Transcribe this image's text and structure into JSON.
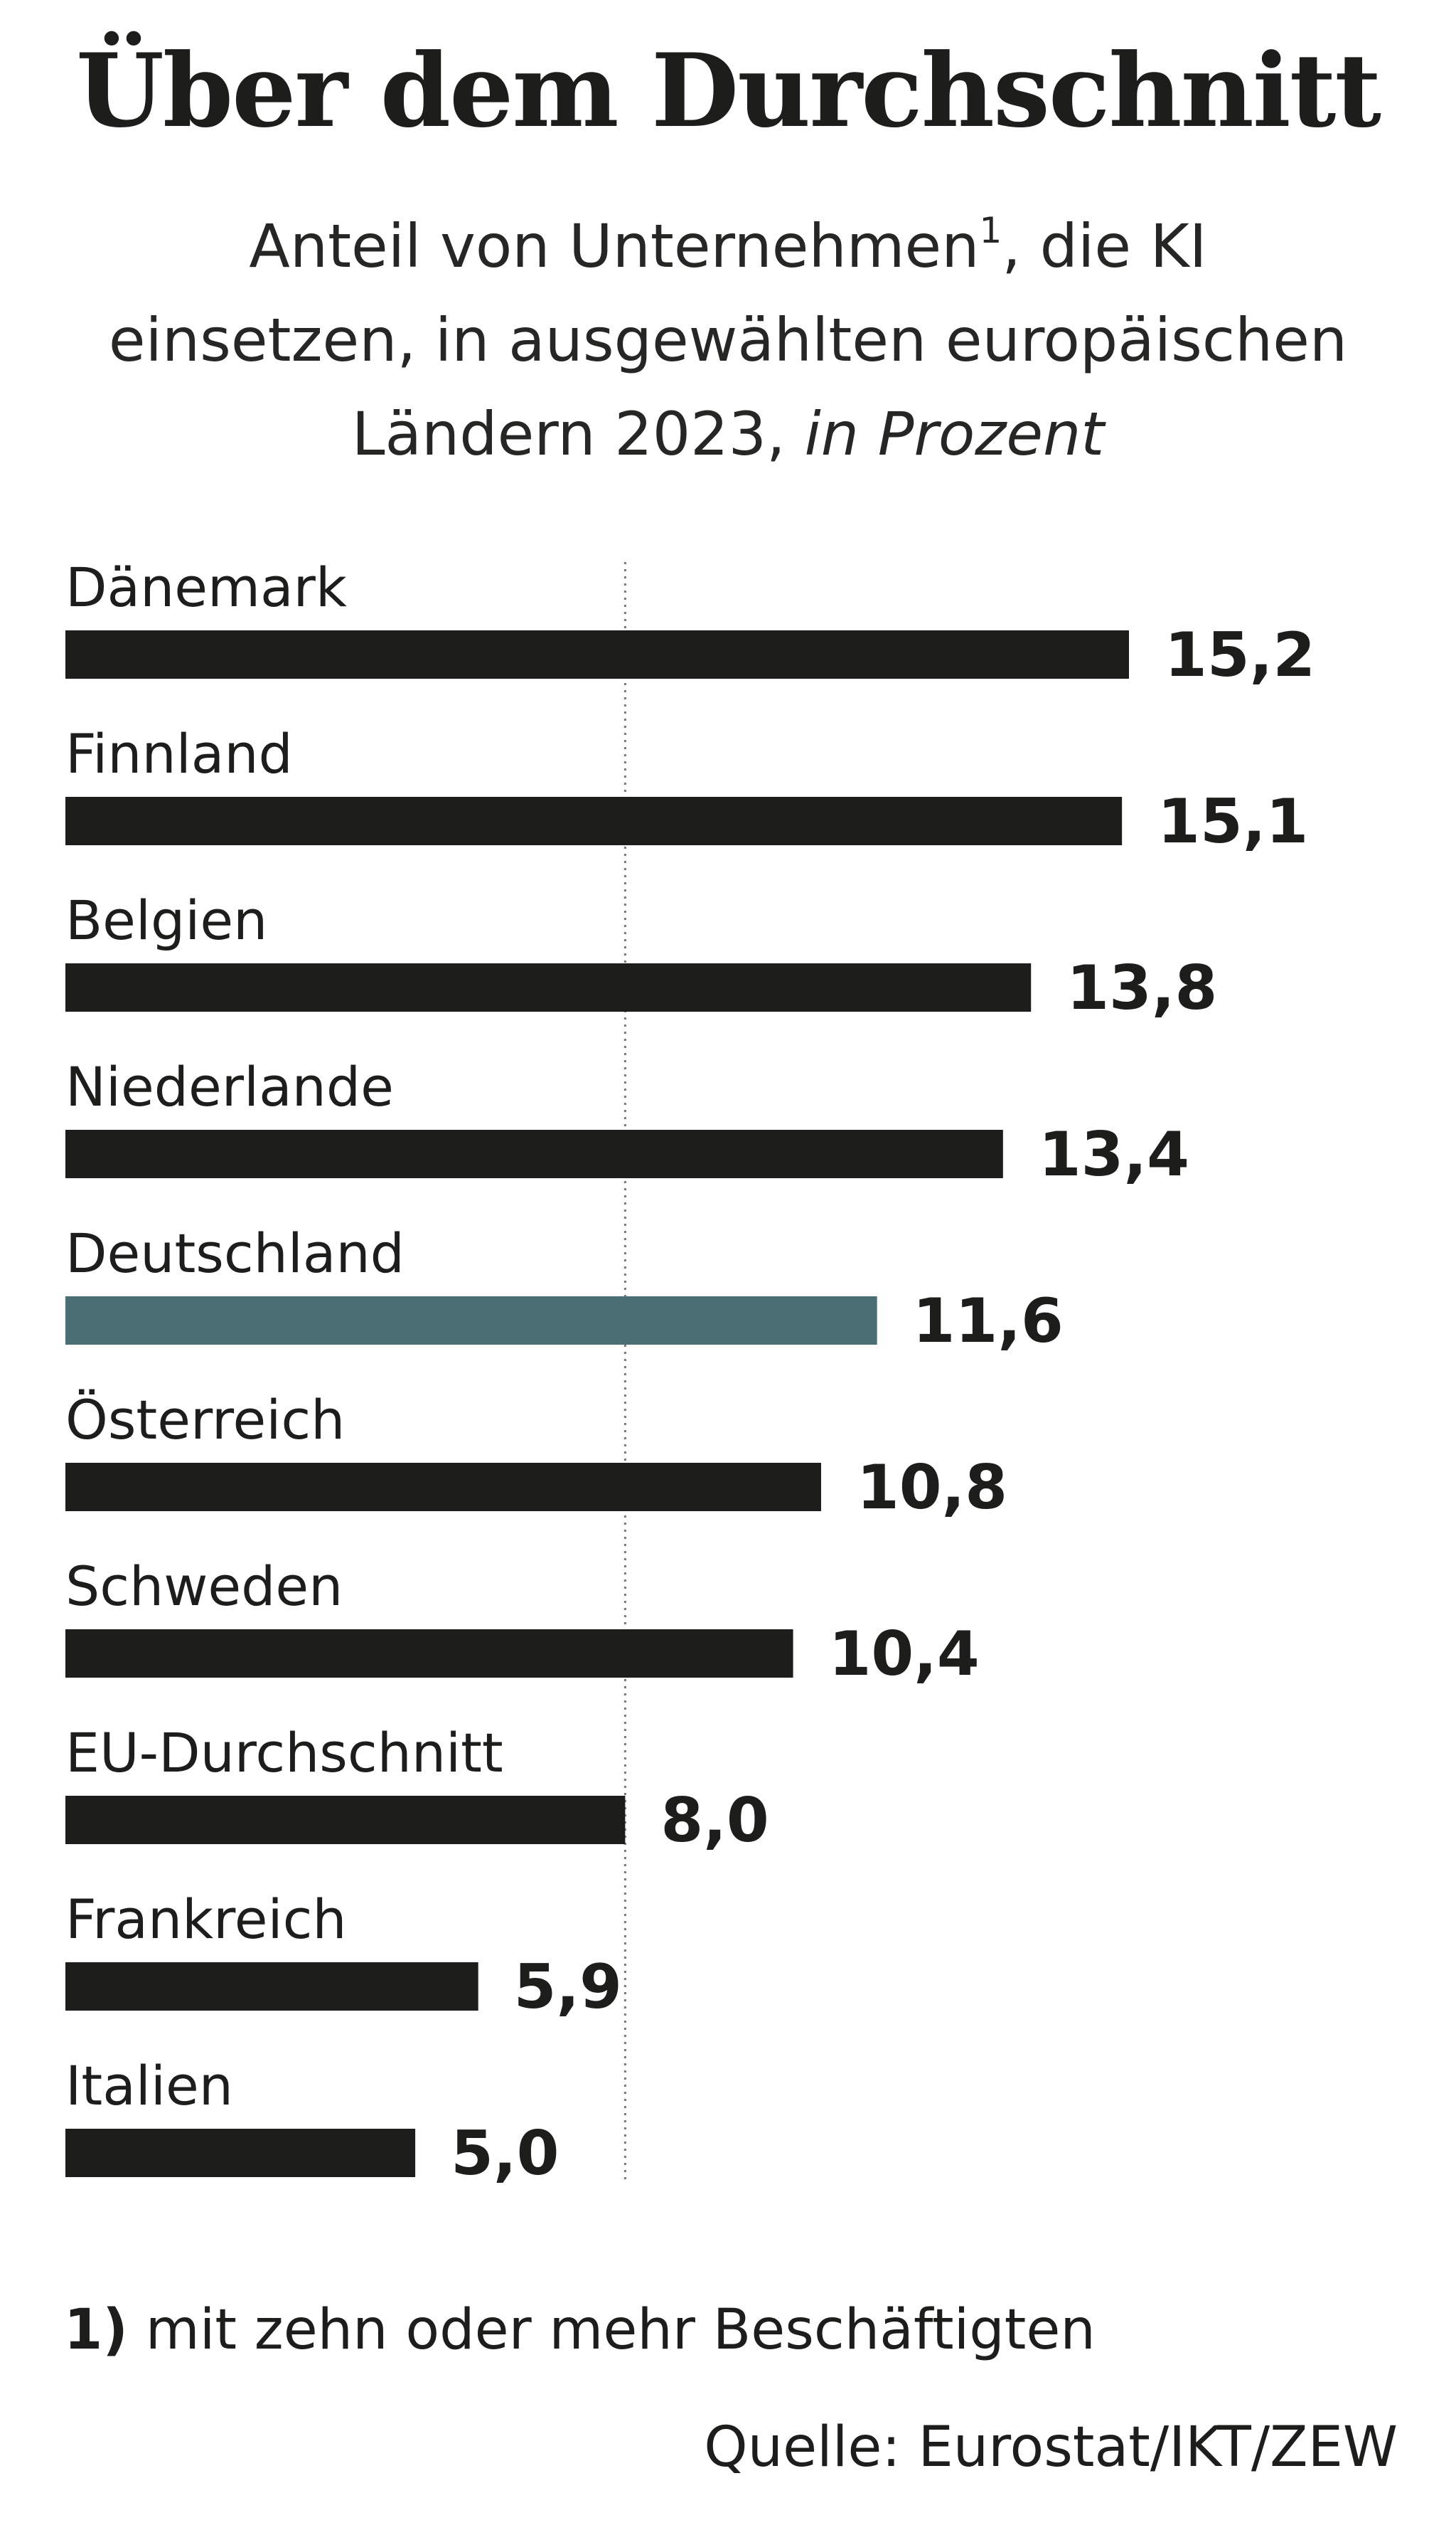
{
  "header": {
    "title": "Über dem Durchschnitt",
    "subtitle_part1": "Anteil von Unternehmen",
    "subtitle_footnote_mark": "1",
    "subtitle_part2": ", die KI",
    "subtitle_line2": "einsetzen, in ausgewählten europäischen",
    "subtitle_line3": "Ländern 2023, ",
    "subtitle_unit": "in Prozent"
  },
  "chart_data": {
    "type": "bar",
    "orientation": "horizontal",
    "title": "Über dem Durchschnitt",
    "subtitle": "Anteil von Unternehmen, die KI einsetzen, in ausgewählten europäischen Ländern 2023, in Prozent",
    "categories": [
      "Dänemark",
      "Finnland",
      "Belgien",
      "Niederlande",
      "Deutschland",
      "Österreich",
      "Schweden",
      "EU-Durchschnitt",
      "Frankreich",
      "Italien"
    ],
    "values": [
      15.2,
      15.1,
      13.8,
      13.4,
      11.6,
      10.8,
      10.4,
      8.0,
      5.9,
      5.0
    ],
    "value_labels": [
      "15,2",
      "15,1",
      "13,8",
      "13,4",
      "11,6",
      "10,8",
      "10,4",
      "8,0",
      "5,9",
      "5,0"
    ],
    "highlight_category": "Deutschland",
    "reference_line": 8.0,
    "xlim": [
      0,
      15.2
    ],
    "grid": false,
    "colors": {
      "bar": "#1d1d1b",
      "highlight": "#4a6e73",
      "reference_line": "#777777"
    }
  },
  "footnote": {
    "marker": "1)",
    "text": " mit zehn oder mehr Beschäftigten"
  },
  "source": "Quelle: Eurostat/IKT/ZEW"
}
